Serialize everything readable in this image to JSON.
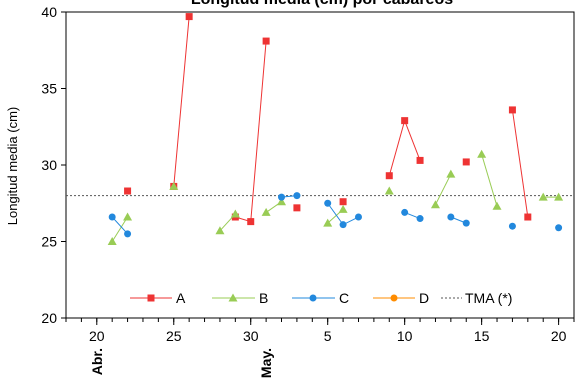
{
  "chart_data": {
    "type": "line",
    "title": "Longitud media (cm) por cabareos",
    "xlabel": "",
    "ylabel": "Longitud media (cm)",
    "ylim": [
      20,
      40
    ],
    "yticks": [
      20,
      25,
      30,
      35,
      40
    ],
    "xlim": [
      "2021-04-18",
      "2021-05-21"
    ],
    "xticks": [
      {
        "date": "2021-04-20",
        "label": "20"
      },
      {
        "date": "2021-04-25",
        "label": "25"
      },
      {
        "date": "2021-04-30",
        "label": "30"
      },
      {
        "date": "2021-05-05",
        "label": "5"
      },
      {
        "date": "2021-05-10",
        "label": "10"
      },
      {
        "date": "2021-05-15",
        "label": "15"
      },
      {
        "date": "2021-05-20",
        "label": "20"
      }
    ],
    "month_labels": [
      {
        "date": "2021-04-20",
        "label": "Abr."
      },
      {
        "date": "2021-05-01",
        "label": "May."
      }
    ],
    "grid": false,
    "legend_position": "bottom",
    "reference_line": {
      "name": "TMA (*)",
      "value": 28.0,
      "color": "#555555"
    },
    "series": [
      {
        "name": "A",
        "color": "#ee3333",
        "marker": "square",
        "segments": [
          [
            [
              "2021-04-22",
              28.3
            ]
          ],
          [
            [
              "2021-04-25",
              28.6
            ],
            [
              "2021-04-26",
              39.7
            ]
          ],
          [
            [
              "2021-04-29",
              26.6
            ],
            [
              "2021-04-30",
              26.3
            ],
            [
              "2021-05-01",
              38.1
            ]
          ],
          [
            [
              "2021-05-03",
              27.2
            ]
          ],
          [
            [
              "2021-05-06",
              27.6
            ]
          ],
          [
            [
              "2021-05-09",
              29.3
            ],
            [
              "2021-05-10",
              32.9
            ],
            [
              "2021-05-11",
              30.3
            ]
          ],
          [
            [
              "2021-05-14",
              30.2
            ]
          ],
          [
            [
              "2021-05-17",
              33.6
            ],
            [
              "2021-05-18",
              26.6
            ]
          ]
        ]
      },
      {
        "name": "B",
        "color": "#99cc55",
        "marker": "triangle",
        "segments": [
          [
            [
              "2021-04-21",
              25.0
            ],
            [
              "2021-04-22",
              26.6
            ]
          ],
          [
            [
              "2021-04-25",
              28.6
            ]
          ],
          [
            [
              "2021-04-28",
              25.7
            ],
            [
              "2021-04-29",
              26.8
            ]
          ],
          [
            [
              "2021-05-01",
              26.9
            ],
            [
              "2021-05-02",
              27.6
            ]
          ],
          [
            [
              "2021-05-05",
              26.2
            ],
            [
              "2021-05-06",
              27.1
            ]
          ],
          [
            [
              "2021-05-09",
              28.3
            ]
          ],
          [
            [
              "2021-05-12",
              27.4
            ],
            [
              "2021-05-13",
              29.4
            ]
          ],
          [
            [
              "2021-05-15",
              30.7
            ],
            [
              "2021-05-16",
              27.3
            ]
          ],
          [
            [
              "2021-05-19",
              27.9
            ],
            [
              "2021-05-20",
              27.9
            ]
          ]
        ]
      },
      {
        "name": "C",
        "color": "#2288dd",
        "marker": "circle",
        "segments": [
          [
            [
              "2021-04-21",
              26.6
            ],
            [
              "2021-04-22",
              25.5
            ]
          ],
          [
            [
              "2021-05-02",
              27.9
            ],
            [
              "2021-05-03",
              28.0
            ]
          ],
          [
            [
              "2021-05-05",
              27.5
            ],
            [
              "2021-05-06",
              26.1
            ],
            [
              "2021-05-07",
              26.6
            ]
          ],
          [
            [
              "2021-05-10",
              26.9
            ],
            [
              "2021-05-11",
              26.5
            ]
          ],
          [
            [
              "2021-05-13",
              26.6
            ],
            [
              "2021-05-14",
              26.2
            ]
          ],
          [
            [
              "2021-05-17",
              26.0
            ]
          ],
          [
            [
              "2021-05-20",
              25.9
            ]
          ]
        ]
      },
      {
        "name": "D",
        "color": "#ff8c00",
        "marker": "circle",
        "segments": []
      }
    ]
  }
}
